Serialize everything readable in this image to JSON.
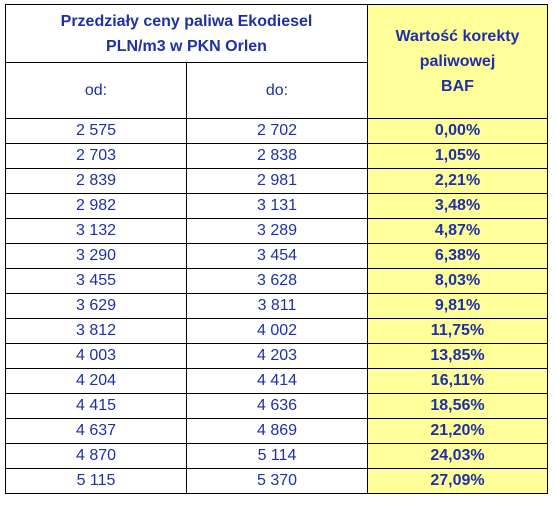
{
  "table": {
    "header": {
      "range_title_line1": "Przedziały ceny paliwa Ekodiesel",
      "range_title_line2": "PLN/m3 w PKN Orlen",
      "baf_title_line1": "Wartość korekty",
      "baf_title_line2": "paliwowej",
      "baf_title_line3": "BAF",
      "from_label": "od:",
      "to_label": "do:"
    },
    "rows": [
      {
        "from": "2 575",
        "to": "2 702",
        "baf": "0,00%"
      },
      {
        "from": "2 703",
        "to": "2 838",
        "baf": "1,05%"
      },
      {
        "from": "2 839",
        "to": "2 981",
        "baf": "2,21%"
      },
      {
        "from": "2 982",
        "to": "3 131",
        "baf": "3,48%"
      },
      {
        "from": "3 132",
        "to": "3 289",
        "baf": "4,87%"
      },
      {
        "from": "3 290",
        "to": "3 454",
        "baf": "6,38%"
      },
      {
        "from": "3 455",
        "to": "3 628",
        "baf": "8,03%"
      },
      {
        "from": "3 629",
        "to": "3 811",
        "baf": "9,81%"
      },
      {
        "from": "3 812",
        "to": "4 002",
        "baf": "11,75%"
      },
      {
        "from": "4 003",
        "to": "4 203",
        "baf": "13,85%"
      },
      {
        "from": "4 204",
        "to": "4 414",
        "baf": "16,11%"
      },
      {
        "from": "4 415",
        "to": "4 636",
        "baf": "18,56%"
      },
      {
        "from": "4 637",
        "to": "4 869",
        "baf": "21,20%"
      },
      {
        "from": "4 870",
        "to": "5 114",
        "baf": "24,03%"
      },
      {
        "from": "5 115",
        "to": "5 370",
        "baf": "27,09%"
      }
    ]
  },
  "colors": {
    "text": "#1f2fa8",
    "highlight": "#ffff99",
    "border": "#000000"
  }
}
